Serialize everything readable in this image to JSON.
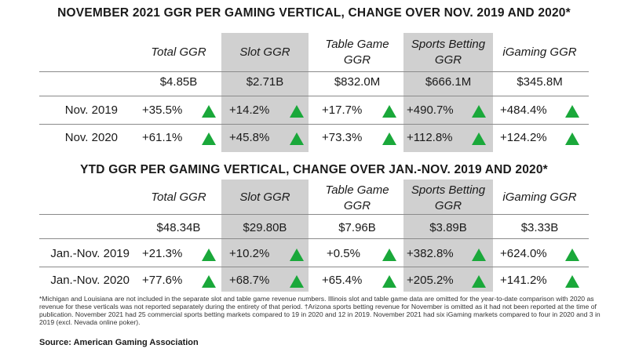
{
  "colors": {
    "shade": "#d0d0d0",
    "arrow_up": "#1aa83a"
  },
  "columns": [
    {
      "label": "Total GGR",
      "shaded": false
    },
    {
      "label": "Slot GGR",
      "shaded": true
    },
    {
      "label": "Table Game GGR",
      "shaded": false
    },
    {
      "label": "Sports Betting GGR",
      "shaded": true
    },
    {
      "label": "iGaming GGR",
      "shaded": false
    }
  ],
  "tables": [
    {
      "title": "NOVEMBER 2021 GGR PER GAMING VERTICAL, CHANGE OVER NOV. 2019 AND 2020*",
      "header_labels": [
        "Total GGR",
        "Slot GGR",
        "Table Game GGR",
        "Sports Betting GGR",
        "iGaming GGR"
      ],
      "totals": [
        "$4.85B",
        "$2.71B",
        "$832.0M",
        "$666.1M",
        "$345.8M"
      ],
      "rows": [
        {
          "label": "Nov. 2019",
          "values": [
            "+35.5%",
            "+14.2%",
            "+17.7%",
            "+490.7%",
            "+484.4%"
          ],
          "arrow": "up"
        },
        {
          "label": "Nov. 2020",
          "values": [
            "+61.1%",
            "+45.8%",
            "+73.3%",
            "+112.8%",
            "+124.2%"
          ],
          "arrow": "up"
        }
      ]
    },
    {
      "title": "YTD GGR PER GAMING VERTICAL, CHANGE OVER JAN.-NOV. 2019 AND 2020*",
      "header_labels": [
        "Total GGR",
        "Slot GGR",
        "Table Game GGR",
        "Sports Betting GGR",
        "iGaming GGR"
      ],
      "totals": [
        "$48.34B",
        "$29.80B",
        "$7.96B",
        "$3.89B",
        "$3.33B"
      ],
      "rows": [
        {
          "label": "Jan.-Nov. 2019",
          "values": [
            "+21.3%",
            "+10.2%",
            "+0.5%",
            "+382.8%",
            "+624.0%"
          ],
          "arrow": "up"
        },
        {
          "label": "Jan.-Nov. 2020",
          "values": [
            "+77.6%",
            "+68.7%",
            "+65.4%",
            "+205.2%",
            "+141.2%"
          ],
          "arrow": "up"
        }
      ]
    }
  ],
  "footnote": "*Michigan and Louisiana are not included in the separate slot and table game revenue numbers. Illinois slot and table game data are omitted for the year-to-date comparison with 2020 as revenue for these verticals was not reported separately during the entirety of that period. †Arizona sports betting revenue for November is omitted as it had not been reported at the time of publication. November 2021 had 25 commercial sports betting markets compared to 19 in 2020 and 12 in 2019. November 2021 had six iGaming markets compared to four in 2020 and 3 in 2019 (excl. Nevada online poker).",
  "source": "Source: American Gaming Association"
}
